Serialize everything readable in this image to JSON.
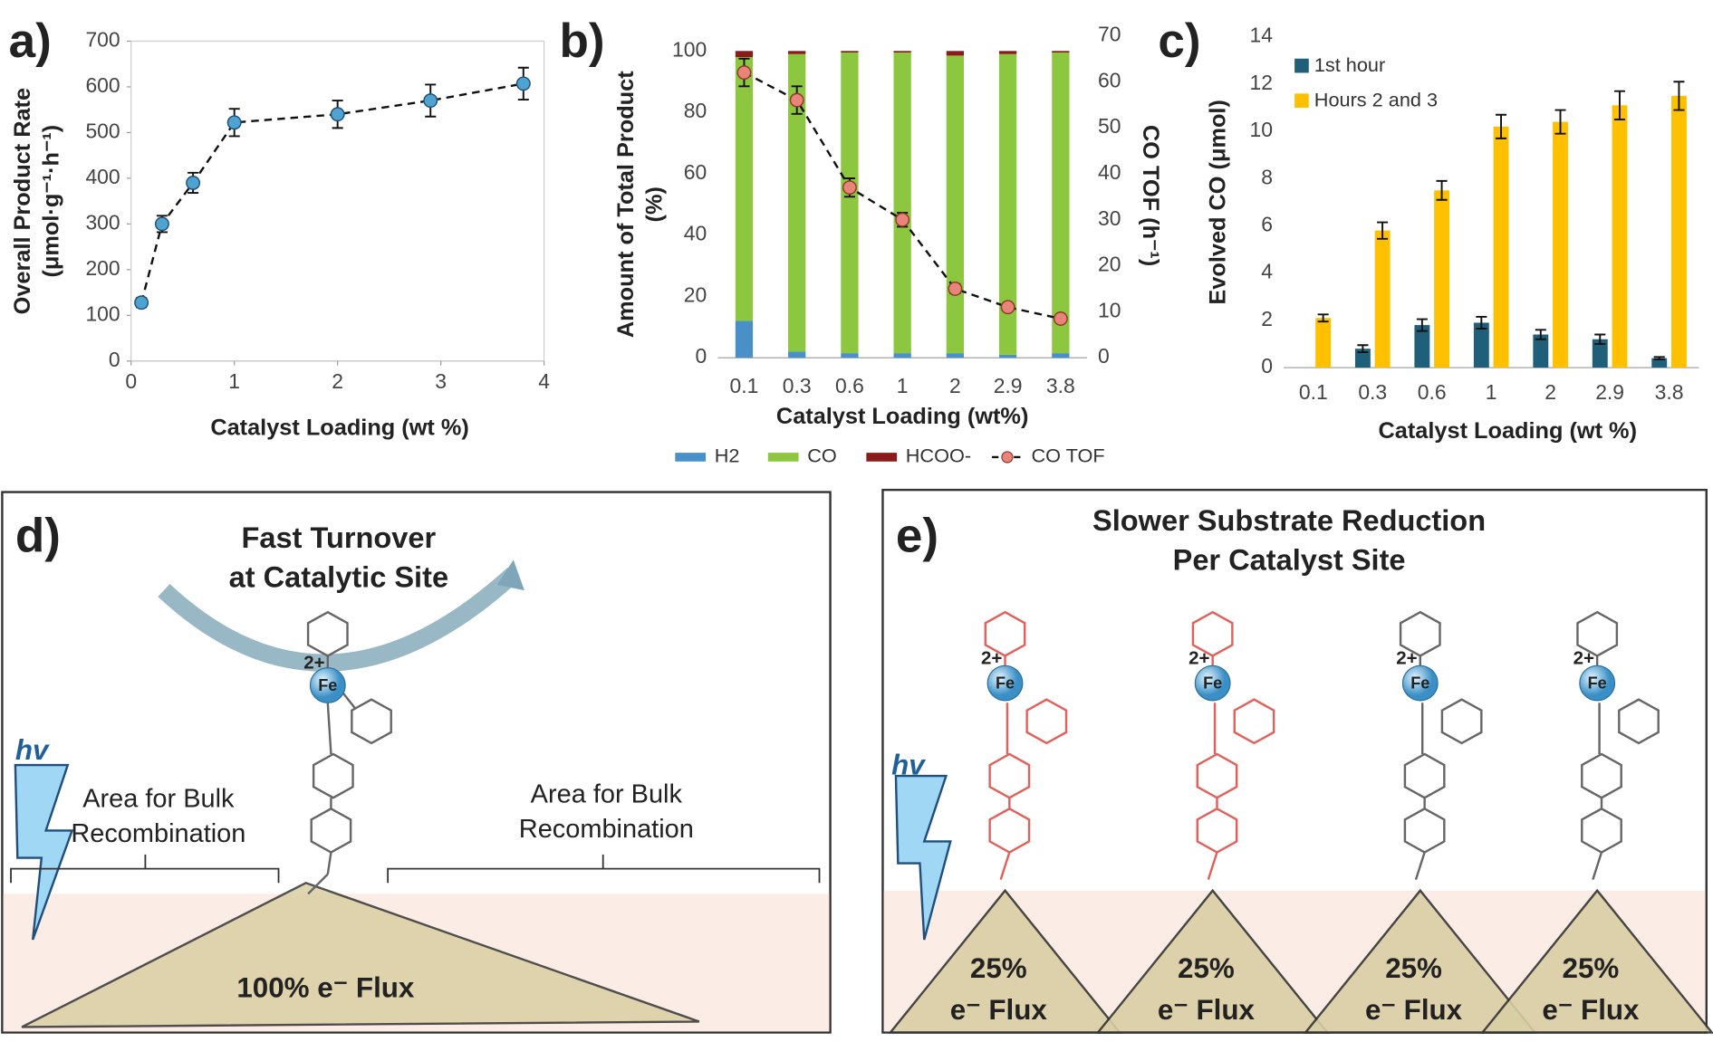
{
  "chart_data": [
    {
      "type": "scatter",
      "panel_label": "a)",
      "x_label": "Catalyst Loading (wt %)",
      "y_label": [
        "Overall Product Rate",
        "(μmol·g⁻¹·h⁻¹)"
      ],
      "x": [
        0.1,
        0.3,
        0.6,
        1,
        2,
        2.9,
        3.8
      ],
      "values": [
        128,
        300,
        390,
        522,
        540,
        570,
        607
      ],
      "errors": [
        10,
        18,
        22,
        30,
        30,
        35,
        35
      ],
      "color": "#4fa3d1",
      "line_style": "dashed",
      "xlim": [
        0,
        4
      ],
      "xticks": [
        0,
        1,
        2,
        3,
        4
      ],
      "ylim": [
        0,
        700
      ],
      "yticks": [
        0,
        100,
        200,
        300,
        400,
        500,
        600,
        700
      ]
    },
    {
      "type": "stacked_bar",
      "panel_label": "b)",
      "x_label": "Catalyst Loading (wt%)",
      "y_label": [
        "Amount of Total Product",
        "(%)"
      ],
      "y2_label": "CO TOF (h⁻¹)",
      "categories": [
        "0.1",
        "0.3",
        "0.6",
        "1",
        "2",
        "2.9",
        "3.8"
      ],
      "series": [
        {
          "name": "H2",
          "color": "#4a90c8",
          "values": [
            12,
            2,
            1.5,
            1.5,
            1.5,
            1,
            1.5
          ]
        },
        {
          "name": "CO",
          "color": "#8dc63f",
          "values": [
            86,
            97,
            98,
            98,
            97,
            98,
            98
          ]
        },
        {
          "name": "HCOO-",
          "color": "#8b1a1a",
          "values": [
            2,
            1,
            0.5,
            0.5,
            1.5,
            1,
            0.5
          ]
        },
        {
          "name": "CO TOF",
          "color": "#e8847a",
          "axis": "y2",
          "line_style": "dashed",
          "values": [
            62,
            56,
            37,
            30,
            15,
            11,
            8.5
          ],
          "errors": [
            3,
            3,
            2,
            1.5,
            1,
            0.8,
            0.5
          ]
        }
      ],
      "ylim": [
        0,
        100
      ],
      "yticks": [
        0,
        20,
        40,
        60,
        80,
        100
      ],
      "y2lim": [
        0,
        70
      ],
      "y2ticks": [
        0,
        10,
        20,
        30,
        40,
        50,
        60,
        70
      ],
      "legend": "bottom"
    },
    {
      "type": "grouped_bar",
      "panel_label": "c)",
      "x_label": "Catalyst Loading (wt %)",
      "y_label": [
        "Evolved CO (μmol)"
      ],
      "categories": [
        "0.1",
        "0.3",
        "0.6",
        "1",
        "2",
        "2.9",
        "3.8"
      ],
      "series": [
        {
          "name": "1st hour",
          "color": "#1f5f7a",
          "values": [
            null,
            0.8,
            1.8,
            1.9,
            1.4,
            1.2,
            0.4
          ],
          "errors": [
            null,
            0.15,
            0.25,
            0.25,
            0.2,
            0.2,
            0.05
          ]
        },
        {
          "name": "Hours 2 and 3",
          "color": "#ffc000",
          "values": [
            2.1,
            5.8,
            7.5,
            10.2,
            10.4,
            11.1,
            11.5
          ],
          "errors": [
            0.15,
            0.35,
            0.4,
            0.5,
            0.5,
            0.6,
            0.6
          ]
        }
      ],
      "ylim": [
        0,
        14
      ],
      "yticks": [
        0,
        2,
        4,
        6,
        8,
        10,
        12,
        14
      ],
      "legend": "top-left"
    }
  ],
  "panels": {
    "d": {
      "label": "d)",
      "title": [
        "Fast Turnover",
        "at Catalytic Site"
      ],
      "hv": "hv",
      "charge": "2+",
      "metal": "Fe",
      "regions": [
        [
          "Area for Bulk",
          "Recombination"
        ],
        [
          "Area for Bulk",
          "Recombination"
        ]
      ],
      "flux": "100% e⁻ Flux"
    },
    "e": {
      "label": "e)",
      "title": [
        "Slower Substrate Reduction",
        "Per Catalyst Site"
      ],
      "hv": "hv",
      "sites": [
        {
          "charge": "2+",
          "metal": "Fe",
          "flux": [
            "25%",
            "e⁻ Flux"
          ]
        },
        {
          "charge": "2+",
          "metal": "Fe",
          "flux": [
            "25%",
            "e⁻ Flux"
          ]
        },
        {
          "charge": "2+",
          "metal": "Fe",
          "flux": [
            "25%",
            "e⁻ Flux"
          ]
        },
        {
          "charge": "2+",
          "metal": "Fe",
          "flux": [
            "25%",
            "e⁻ Flux"
          ]
        }
      ]
    }
  }
}
